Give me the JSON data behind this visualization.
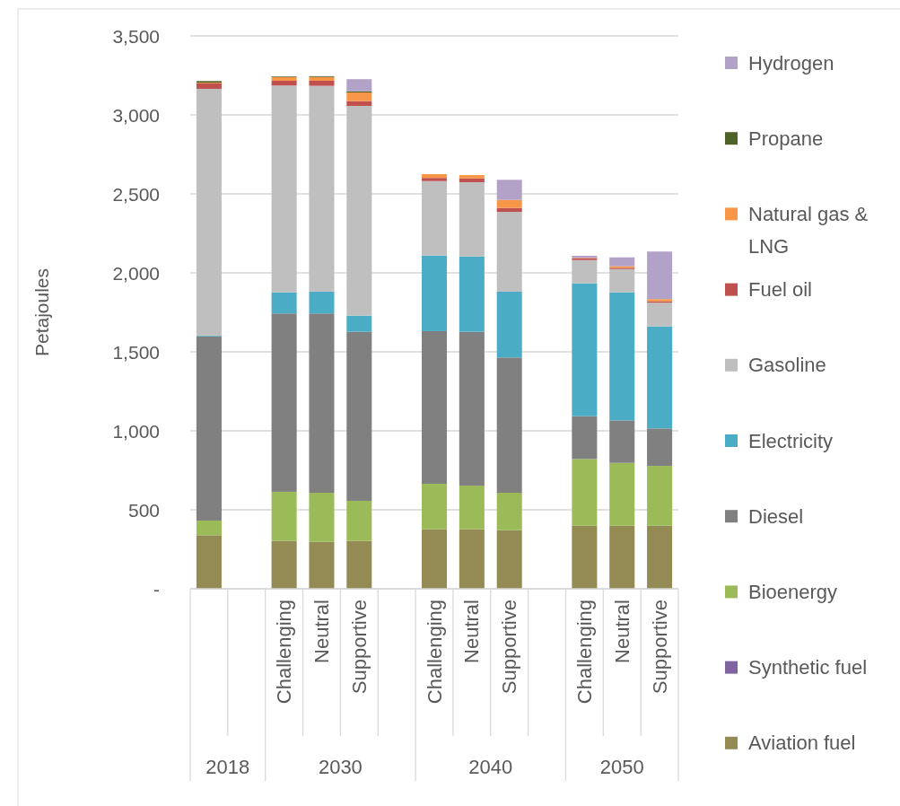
{
  "chart_data": {
    "type": "bar",
    "stacked": true,
    "ylabel": "Petajoules",
    "categories": [
      null,
      null,
      "Challenging",
      "Neutral",
      "Supportive",
      null,
      "Challenging",
      "Neutral",
      "Supportive",
      null,
      "Challenging",
      "Neutral",
      "Supportive"
    ],
    "annotations": [
      "2018",
      "2030",
      "2040",
      "2050"
    ],
    "ylim": [
      0,
      3500
    ],
    "yticks": [
      {
        "value": 0,
        "label": "-"
      },
      500,
      {
        "value": 1000,
        "label": "1,000"
      },
      {
        "value": 1500,
        "label": "1,500"
      },
      {
        "value": 2000,
        "label": "2,000"
      },
      {
        "value": 2500,
        "label": "2,500"
      },
      {
        "value": 3000,
        "label": "3,000"
      },
      {
        "value": 3500,
        "label": "3,500"
      }
    ],
    "grid": "y",
    "legend": "right",
    "series": [
      {
        "name": "Aviation fuel",
        "color": "#948a54",
        "values": [
          339,
          null,
          303,
          297,
          303,
          null,
          377,
          377,
          371,
          null,
          399,
          399,
          399
        ]
      },
      {
        "name": "Synthetic fuel",
        "color": "#8064a2",
        "values": [
          0,
          null,
          0,
          0,
          0,
          null,
          0,
          0,
          0,
          null,
          0,
          0,
          0
        ]
      },
      {
        "name": "Bioenergy",
        "color": "#9bbb59",
        "values": [
          93,
          null,
          311,
          311,
          254,
          null,
          288,
          276,
          237,
          null,
          423,
          398,
          379
        ]
      },
      {
        "name": "Diesel",
        "color": "#808080",
        "values": [
          1166,
          null,
          1129,
          1135,
          1070,
          null,
          966,
          974,
          856,
          null,
          271,
          269,
          237
        ]
      },
      {
        "name": "Electricity",
        "color": "#4bacc6",
        "values": [
          5,
          null,
          134,
          138,
          102,
          null,
          479,
          477,
          417,
          null,
          841,
          811,
          646
        ]
      },
      {
        "name": "Gasoline",
        "color": "#bfbfbf",
        "values": [
          1562,
          null,
          1309,
          1303,
          1328,
          null,
          471,
          470,
          505,
          null,
          147,
          147,
          150
        ]
      },
      {
        "name": "Fuel oil",
        "color": "#c0504d",
        "values": [
          34,
          null,
          30,
          32,
          30,
          null,
          20,
          24,
          25,
          null,
          12,
          8,
          9
        ]
      },
      {
        "name": "Natural gas & LNG",
        "color": "#f79646",
        "values": [
          5,
          null,
          24,
          24,
          55,
          null,
          24,
          21,
          51,
          null,
          2,
          10,
          14
        ]
      },
      {
        "name": "Propane",
        "color": "#4f6228",
        "values": [
          10,
          null,
          4,
          5,
          7,
          null,
          0,
          0,
          0,
          null,
          0,
          0,
          0
        ]
      },
      {
        "name": "Hydrogen",
        "color": "#b3a2c7",
        "values": [
          0,
          null,
          0,
          0,
          77,
          null,
          0,
          0,
          127,
          null,
          13,
          56,
          301
        ]
      }
    ]
  }
}
